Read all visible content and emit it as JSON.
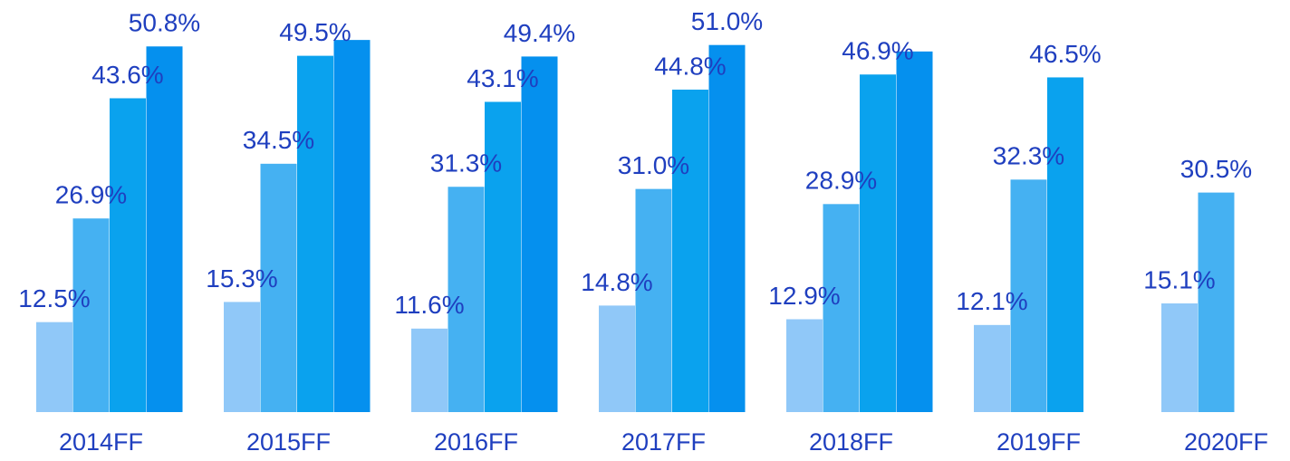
{
  "chart_data": {
    "type": "bar",
    "categories": [
      "2014FF",
      "2015FF",
      "2016FF",
      "2017FF",
      "2018FF",
      "2019FF",
      "2020FF"
    ],
    "series": [
      {
        "color": "#90c8f8",
        "values": [
          12.5,
          15.3,
          11.6,
          14.8,
          12.9,
          12.1,
          15.1
        ],
        "value_labels": [
          "12.5%",
          "15.3%",
          "11.6%",
          "14.8%",
          "12.9%",
          "12.1%",
          "15.1%"
        ]
      },
      {
        "color": "#45b1f2",
        "values": [
          26.9,
          34.5,
          31.3,
          31.0,
          28.9,
          32.3,
          30.5
        ],
        "value_labels": [
          "26.9%",
          "34.5%",
          "31.3%",
          "31.0%",
          "28.9%",
          "32.3%",
          "30.5%"
        ]
      },
      {
        "color": "#0aa2ee",
        "values": [
          43.6,
          49.5,
          43.1,
          44.8,
          46.9,
          46.5,
          null
        ],
        "value_labels": [
          "43.6%",
          "49.5%",
          "43.1%",
          "44.8%",
          "46.9%",
          "46.5%",
          null
        ]
      },
      {
        "color": "#0590ee",
        "values": [
          50.8,
          51.7,
          49.4,
          51.0,
          50.1,
          null,
          null
        ],
        "value_labels": [
          "50.8%",
          null,
          "49.4%",
          "51.0%",
          null,
          null,
          null
        ]
      }
    ],
    "ylim": [
      0,
      57
    ]
  }
}
